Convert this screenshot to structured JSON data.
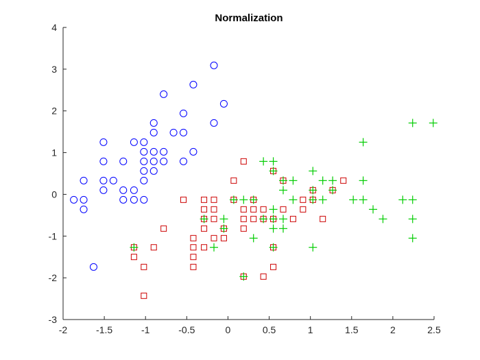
{
  "chart_data": {
    "type": "scatter",
    "title": "Normalization",
    "xlabel": "",
    "ylabel": "",
    "xlim": [
      -2,
      2.5
    ],
    "ylim": [
      -3,
      4
    ],
    "xticks": [
      -2,
      -1.5,
      -1,
      -0.5,
      0,
      0.5,
      1,
      1.5,
      2,
      2.5
    ],
    "yticks": [
      -3,
      -2,
      -1,
      0,
      1,
      2,
      3,
      4
    ],
    "xtick_labels": [
      "-2",
      "-1.5",
      "-1",
      "-0.5",
      "0",
      "0.5",
      "1",
      "1.5",
      "2",
      "2.5"
    ],
    "ytick_labels": [
      "-3",
      "-2",
      "-1",
      "0",
      "1",
      "2",
      "3",
      "4"
    ],
    "grid": false,
    "series": [
      {
        "marker": "circle",
        "color": "#0000ff",
        "points": [
          [
            -1.87,
            -0.13
          ],
          [
            -1.75,
            0.33
          ],
          [
            -1.75,
            -0.13
          ],
          [
            -1.75,
            -0.36
          ],
          [
            -1.63,
            -1.74
          ],
          [
            -1.51,
            1.25
          ],
          [
            -1.51,
            0.79
          ],
          [
            -1.51,
            0.33
          ],
          [
            -1.51,
            0.1
          ],
          [
            -1.39,
            0.33
          ],
          [
            -1.27,
            0.79
          ],
          [
            -1.27,
            0.1
          ],
          [
            -1.27,
            -0.13
          ],
          [
            -1.14,
            1.25
          ],
          [
            -1.14,
            0.1
          ],
          [
            -1.14,
            -0.13
          ],
          [
            -1.02,
            1.25
          ],
          [
            -1.02,
            1.02
          ],
          [
            -1.02,
            0.79
          ],
          [
            -1.02,
            0.56
          ],
          [
            -1.02,
            0.33
          ],
          [
            -1.02,
            -0.13
          ],
          [
            -0.9,
            1.71
          ],
          [
            -0.9,
            1.48
          ],
          [
            -0.9,
            1.02
          ],
          [
            -0.9,
            0.79
          ],
          [
            -0.9,
            0.56
          ],
          [
            -0.78,
            2.4
          ],
          [
            -0.78,
            1.02
          ],
          [
            -0.78,
            0.79
          ],
          [
            -0.66,
            1.48
          ],
          [
            -0.54,
            1.94
          ],
          [
            -0.54,
            1.48
          ],
          [
            -0.54,
            0.79
          ],
          [
            -0.42,
            2.63
          ],
          [
            -0.42,
            1.02
          ],
          [
            -0.17,
            3.09
          ],
          [
            -0.17,
            1.71
          ],
          [
            -0.05,
            2.17
          ]
        ]
      },
      {
        "marker": "square",
        "color": "#cc0000",
        "points": [
          [
            -1.14,
            -1.5
          ],
          [
            -1.14,
            -1.27
          ],
          [
            -1.02,
            -1.74
          ],
          [
            -1.02,
            -2.43
          ],
          [
            -0.9,
            -1.27
          ],
          [
            -0.78,
            -0.82
          ],
          [
            -0.54,
            -0.13
          ],
          [
            -0.42,
            -1.05
          ],
          [
            -0.42,
            -1.27
          ],
          [
            -0.42,
            -1.5
          ],
          [
            -0.42,
            -1.74
          ],
          [
            -0.29,
            -0.13
          ],
          [
            -0.29,
            -0.36
          ],
          [
            -0.29,
            -0.59
          ],
          [
            -0.29,
            -0.82
          ],
          [
            -0.29,
            -1.27
          ],
          [
            -0.17,
            -0.13
          ],
          [
            -0.17,
            -0.36
          ],
          [
            -0.17,
            -0.59
          ],
          [
            -0.17,
            -1.05
          ],
          [
            -0.05,
            -0.82
          ],
          [
            -0.05,
            -1.05
          ],
          [
            0.07,
            0.33
          ],
          [
            0.07,
            -0.13
          ],
          [
            0.19,
            0.79
          ],
          [
            0.19,
            -0.36
          ],
          [
            0.19,
            -0.59
          ],
          [
            0.19,
            -0.82
          ],
          [
            0.19,
            -1.97
          ],
          [
            0.31,
            -0.13
          ],
          [
            0.31,
            -0.36
          ],
          [
            0.31,
            -0.59
          ],
          [
            0.43,
            -0.36
          ],
          [
            0.43,
            -0.59
          ],
          [
            0.43,
            -1.97
          ],
          [
            0.55,
            0.56
          ],
          [
            0.55,
            -0.59
          ],
          [
            0.55,
            -1.27
          ],
          [
            0.55,
            -1.74
          ],
          [
            0.67,
            0.33
          ],
          [
            0.67,
            -0.36
          ],
          [
            0.79,
            -0.59
          ],
          [
            0.91,
            -0.13
          ],
          [
            0.91,
            -0.36
          ],
          [
            1.03,
            0.1
          ],
          [
            1.03,
            -0.13
          ],
          [
            1.15,
            -0.59
          ],
          [
            1.27,
            0.1
          ],
          [
            1.4,
            0.33
          ]
        ]
      },
      {
        "marker": "plus",
        "color": "#00cc00",
        "points": [
          [
            -1.14,
            -1.27
          ],
          [
            -0.29,
            -0.59
          ],
          [
            -0.17,
            -1.27
          ],
          [
            -0.05,
            -0.59
          ],
          [
            -0.05,
            -0.82
          ],
          [
            0.07,
            -0.13
          ],
          [
            0.19,
            -0.13
          ],
          [
            0.19,
            -1.97
          ],
          [
            0.31,
            -0.13
          ],
          [
            0.31,
            -1.05
          ],
          [
            0.43,
            0.79
          ],
          [
            0.43,
            -0.59
          ],
          [
            0.55,
            0.79
          ],
          [
            0.55,
            0.56
          ],
          [
            0.55,
            -0.36
          ],
          [
            0.55,
            -0.59
          ],
          [
            0.55,
            -0.82
          ],
          [
            0.55,
            -1.27
          ],
          [
            0.67,
            0.33
          ],
          [
            0.67,
            0.1
          ],
          [
            0.67,
            -0.59
          ],
          [
            0.67,
            -0.82
          ],
          [
            0.79,
            0.33
          ],
          [
            0.79,
            -0.13
          ],
          [
            1.03,
            0.56
          ],
          [
            1.03,
            0.1
          ],
          [
            1.03,
            -0.13
          ],
          [
            1.03,
            -1.27
          ],
          [
            1.15,
            0.33
          ],
          [
            1.15,
            -0.13
          ],
          [
            1.27,
            0.33
          ],
          [
            1.27,
            0.1
          ],
          [
            1.52,
            -0.13
          ],
          [
            1.64,
            1.25
          ],
          [
            1.64,
            0.33
          ],
          [
            1.64,
            -0.13
          ],
          [
            1.76,
            -0.36
          ],
          [
            1.88,
            -0.59
          ],
          [
            2.12,
            -0.13
          ],
          [
            2.24,
            1.71
          ],
          [
            2.24,
            -0.13
          ],
          [
            2.24,
            -0.59
          ],
          [
            2.24,
            -1.05
          ],
          [
            2.49,
            1.71
          ]
        ]
      }
    ]
  }
}
